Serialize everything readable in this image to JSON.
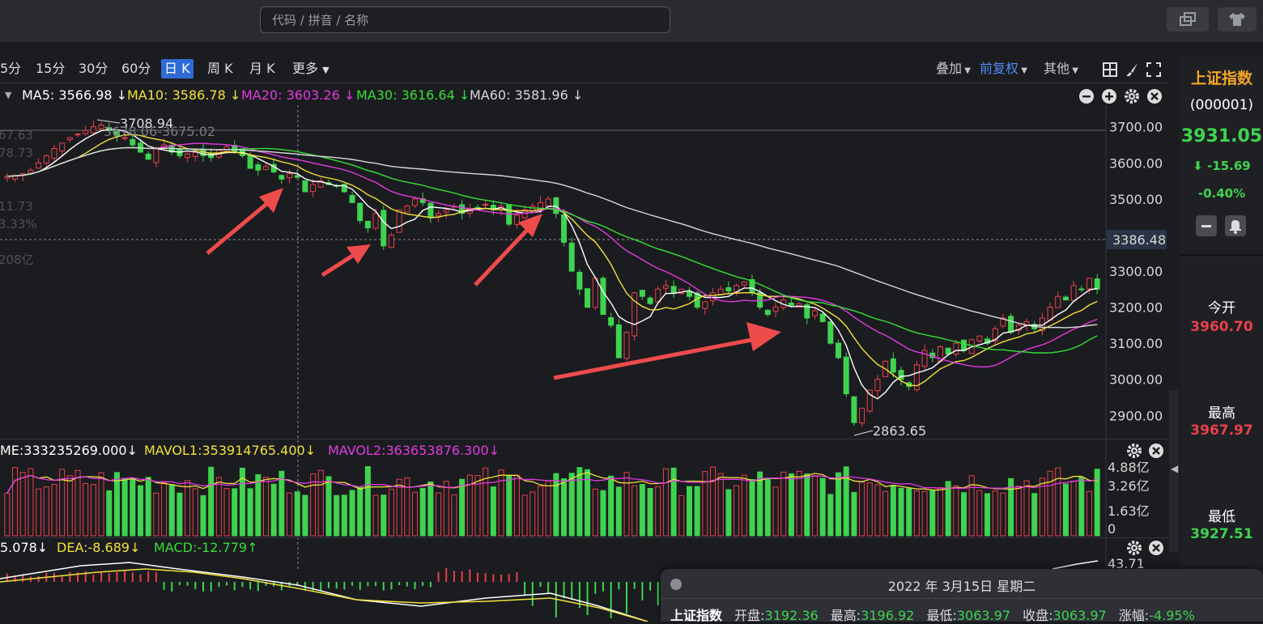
{
  "search": {
    "placeholder": "代码 / 拼音 / 名称"
  },
  "periods": [
    "5分",
    "15分",
    "30分",
    "60分",
    "日 K",
    "周 K",
    "月 K",
    "更多"
  ],
  "active_period": "日 K",
  "toolbar_right": {
    "overlay": "叠加",
    "adjust": "前复权",
    "other": "其他"
  },
  "ma": {
    "ma5": "MA5: 3566.98 ↓",
    "ma10": "MA10: 3586.78 ↓",
    "ma20": "MA20: 3603.26 ↓",
    "ma30": "MA30: 3616.64 ↓",
    "ma60": "MA60: 3581.96 ↓"
  },
  "price_axis": [
    "3700.00",
    "3600.00",
    "3500.00",
    "3400.00",
    "3300.00",
    "3200.00",
    "3100.00",
    "3000.00",
    "2900.00"
  ],
  "crosshair_price": "3386.48",
  "annotations": {
    "high": "3708.94",
    "low": "2863.65",
    "ghost": "3678.06-3675.02"
  },
  "left_ghost_labels": [
    "67.63",
    "78.73",
    "11.73",
    "3.33%",
    "208亿"
  ],
  "volume": {
    "legend": "ME:333235269.000↓",
    "mavol1": "MAVOL1:353914765.400↓",
    "mavol2": "MAVOL2:363653876.300↓",
    "axis": [
      "4.88亿",
      "3.26亿",
      "1.63亿",
      "0"
    ]
  },
  "macd": {
    "diff": "5.078↓",
    "dea": "DEA:-8.689↓",
    "macd": "MACD:-12.779↑",
    "axis": "43.71"
  },
  "panel": {
    "name": "上证指数",
    "code": "(000001)",
    "price": "3931.05",
    "change": "-15.69",
    "change_pct": "-0.40%",
    "open_label": "今开",
    "open": "3960.70",
    "high_label": "最高",
    "high": "3967.97",
    "low_label": "最低",
    "low": "3927.51"
  },
  "info": {
    "date": "2022 年 3月15日 星期二",
    "name": "上证指数",
    "open_label": "开盘:",
    "open": "3192.36",
    "high_label": "最高:",
    "high": "3196.92",
    "low_label": "最低:",
    "low": "3063.97",
    "close_label": "收盘:",
    "close": "3063.97",
    "chg_label": "涨幅:",
    "chg": "-4.95%"
  },
  "colors": {
    "up": "#e8414a",
    "down": "#3fd34f",
    "ma5": "#ffffff",
    "ma10": "#f2e23a",
    "ma20": "#e23ae2",
    "ma30": "#35e035",
    "ma60": "#d8d8d8",
    "accent": "#2f6bd6",
    "arrow": "#ee4b4b"
  },
  "chart_data": {
    "type": "candlestick",
    "ylim": [
      2840,
      3760
    ],
    "closes": [
      3563,
      3565,
      3570,
      3580,
      3600,
      3620,
      3640,
      3655,
      3670,
      3680,
      3690,
      3700,
      3705,
      3690,
      3675,
      3670,
      3650,
      3630,
      3610,
      3640,
      3650,
      3630,
      3620,
      3625,
      3630,
      3620,
      3615,
      3635,
      3645,
      3630,
      3620,
      3585,
      3580,
      3590,
      3575,
      3555,
      3570,
      3560,
      3520,
      3540,
      3550,
      3540,
      3535,
      3520,
      3490,
      3440,
      3420,
      3460,
      3370,
      3400,
      3470,
      3480,
      3500,
      3490,
      3450,
      3460,
      3470,
      3480,
      3460,
      3470,
      3475,
      3485,
      3470,
      3480,
      3430,
      3455,
      3470,
      3480,
      3490,
      3500,
      3460,
      3380,
      3300,
      3250,
      3200,
      3280,
      3180,
      3150,
      3060,
      3130,
      3240,
      3230,
      3210,
      3250,
      3260,
      3240,
      3250,
      3230,
      3200,
      3215,
      3240,
      3250,
      3245,
      3260,
      3270,
      3240,
      3200,
      3180,
      3200,
      3220,
      3205,
      3210,
      3170,
      3190,
      3160,
      3100,
      3060,
      2960,
      2880,
      2920,
      2970,
      3000,
      3050,
      3020,
      3000,
      2980,
      3040,
      3080,
      3060,
      3090,
      3070,
      3100,
      3080,
      3110,
      3120,
      3100,
      3140,
      3170,
      3130,
      3150,
      3160,
      3140,
      3170,
      3200,
      3230,
      3220,
      3260,
      3250,
      3280,
      3250
    ]
  }
}
